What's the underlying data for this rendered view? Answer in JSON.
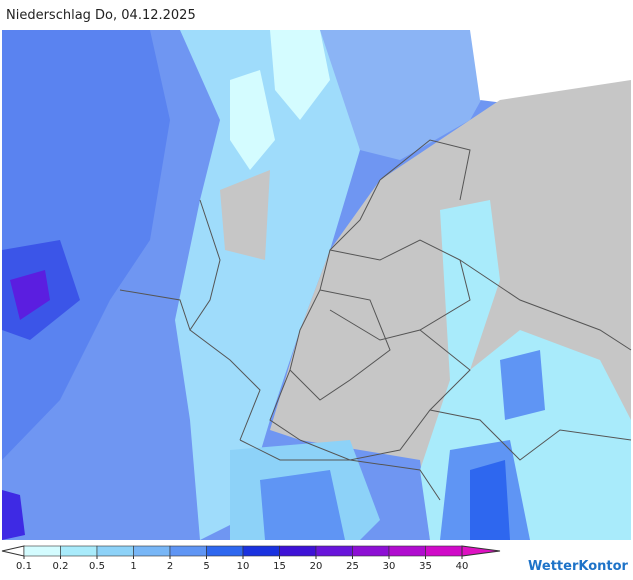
{
  "header": {
    "title": "Niederschlag Do, 04.12.2025"
  },
  "legend": {
    "ticks": [
      0.1,
      0.2,
      0.5,
      1,
      2,
      5,
      10,
      15,
      20,
      25,
      30,
      35,
      40
    ],
    "colors": [
      "#d4fcff",
      "#a9ebfb",
      "#8dd2f8",
      "#78b6f6",
      "#5f95f4",
      "#2e67ef",
      "#1a32df",
      "#3e12d6",
      "#6814da",
      "#8d10d4",
      "#b00ccf",
      "#d00ac8"
    ],
    "below_color": "#ffffff",
    "above_color": "#de12c2"
  },
  "brand": "WetterKontor"
}
